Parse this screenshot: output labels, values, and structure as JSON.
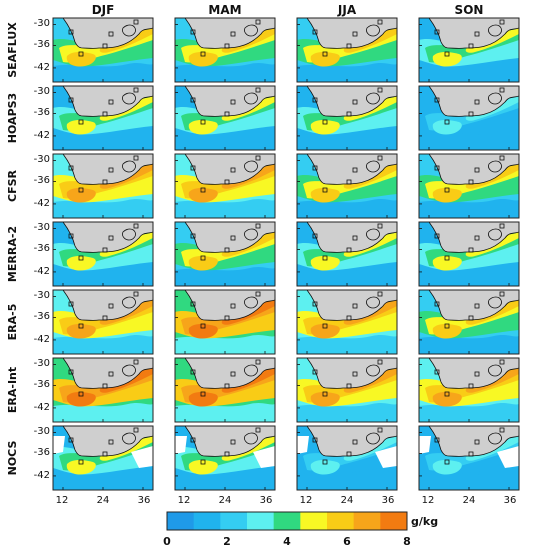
{
  "figure": {
    "columns": [
      "DJF",
      "MAM",
      "JJA",
      "SON"
    ],
    "rows": [
      "SEAFLUX",
      "HOAPS3",
      "CFSR",
      "MERRA-2",
      "ERA-5",
      "ERA-Int",
      "NOCS"
    ],
    "y_ticks": [
      "-30",
      "-36",
      "-42"
    ],
    "x_ticks": [
      "12",
      "24",
      "36"
    ],
    "colorbar": {
      "ticks": [
        "0",
        "2",
        "4",
        "6",
        "8"
      ],
      "unit": "g/kg",
      "colors": [
        "#1f9ae8",
        "#20b3ee",
        "#34cdf2",
        "#5df0f0",
        "#30d980",
        "#f8f824",
        "#f9cc16",
        "#f7a51a",
        "#f27b11"
      ]
    },
    "colors": {
      "land": "#cfcfcf",
      "blank": "#ffffff"
    }
  }
}
